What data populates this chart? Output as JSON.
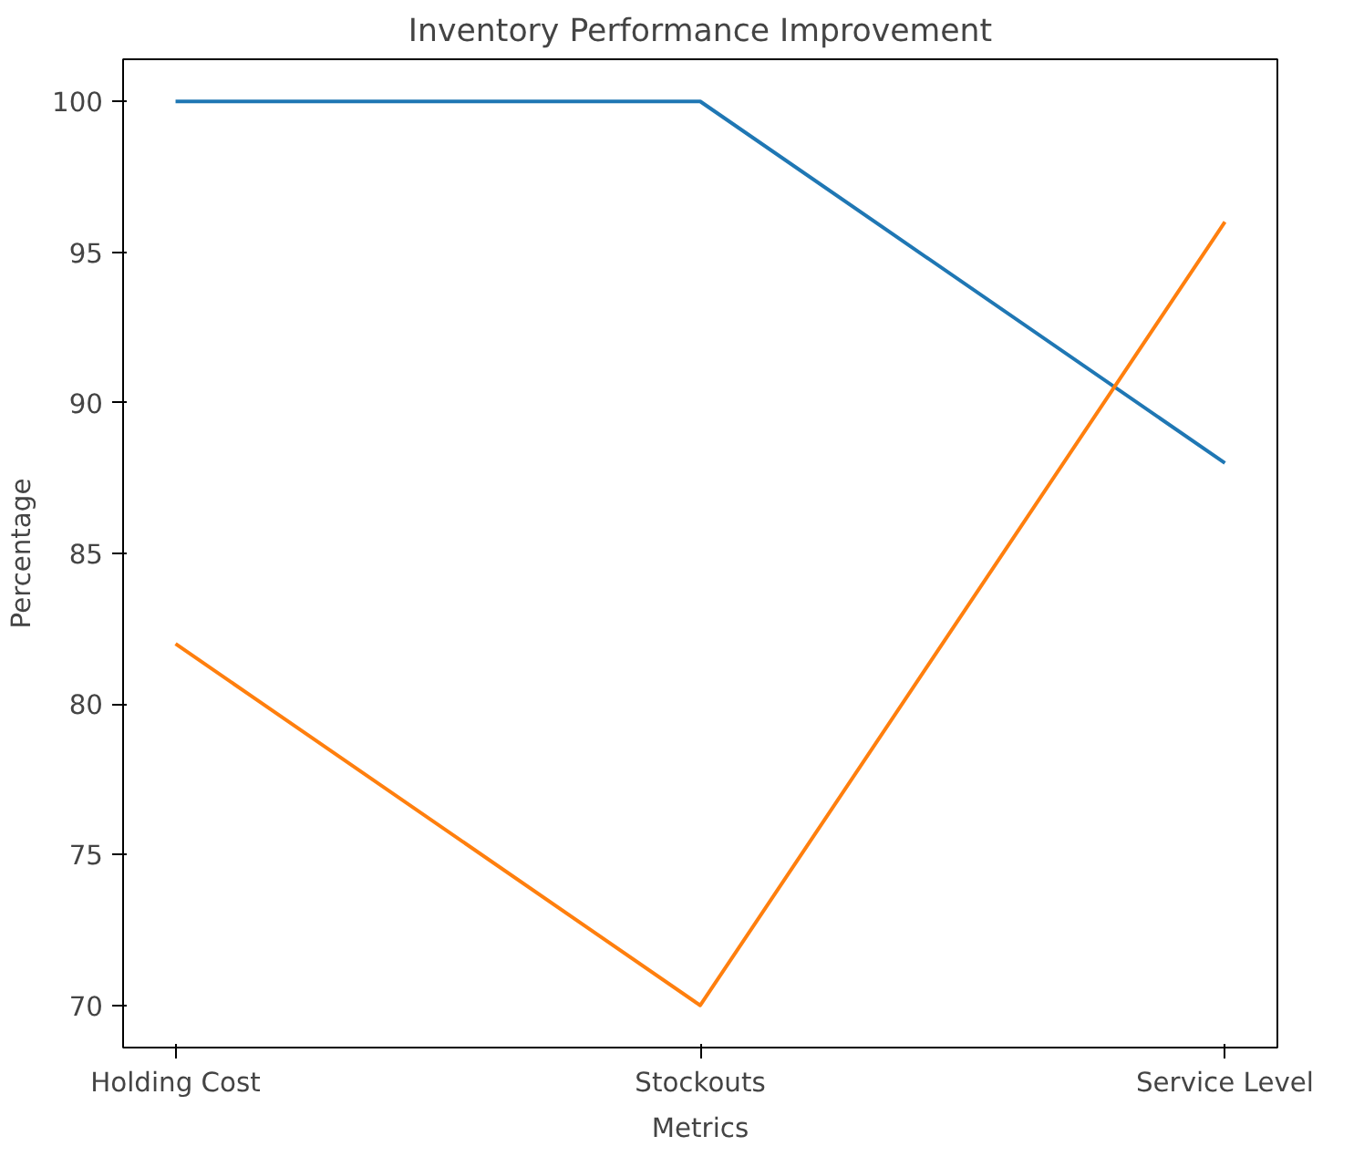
{
  "chart_data": {
    "type": "line",
    "title": "Inventory Performance Improvement",
    "xlabel": "Metrics",
    "ylabel": "Percentage",
    "categories": [
      "Holding Cost",
      "Stockouts",
      "Service Level"
    ],
    "series": [
      {
        "color": "#1f77b4",
        "values": [
          100,
          100,
          88
        ]
      },
      {
        "color": "#ff7f0e",
        "values": [
          82,
          70,
          96
        ]
      }
    ],
    "ylim": [
      68.6,
      101.4
    ],
    "yticks": [
      70,
      75,
      80,
      85,
      90,
      95,
      100
    ],
    "marker": "none",
    "line_style": "solid"
  }
}
